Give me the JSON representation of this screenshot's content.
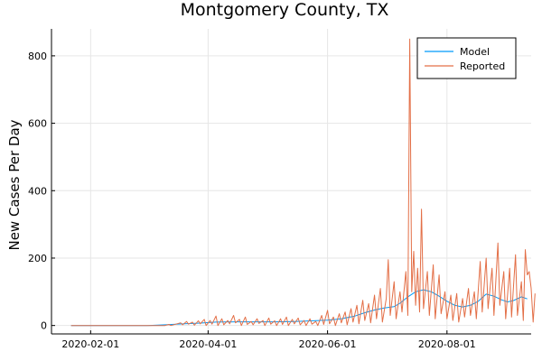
{
  "chart_data": {
    "type": "line",
    "title": "Montgomery County, TX",
    "xlabel": "",
    "ylabel": "New Cases Per Day",
    "x_axis": {
      "type": "date",
      "range": [
        "2020-01-12",
        "2020-09-13"
      ],
      "tick_values": [
        "2020-02-01",
        "2020-04-01",
        "2020-06-01",
        "2020-08-01"
      ],
      "tick_labels": [
        "2020-02-01",
        "2020-04-01",
        "2020-06-01",
        "2020-08-01"
      ]
    },
    "y_axis": {
      "range": [
        -25,
        880
      ],
      "tick_values": [
        0,
        200,
        400,
        600,
        800
      ],
      "tick_labels": [
        "0",
        "200",
        "400",
        "600",
        "800"
      ]
    },
    "grid": true,
    "legend": {
      "placement": "top-right",
      "entries": [
        "Model",
        "Reported"
      ]
    },
    "colors": {
      "Model": "#009AFA",
      "Reported": "#E36F47"
    },
    "series": [
      {
        "name": "Model",
        "color": "#009AFA",
        "points": [
          [
            "2020-01-22",
            0
          ],
          [
            "2020-03-01",
            0
          ],
          [
            "2020-03-10",
            2
          ],
          [
            "2020-03-20",
            5
          ],
          [
            "2020-03-28",
            7
          ],
          [
            "2020-04-05",
            10
          ],
          [
            "2020-04-15",
            11
          ],
          [
            "2020-04-25",
            11
          ],
          [
            "2020-05-05",
            11
          ],
          [
            "2020-05-15",
            12
          ],
          [
            "2020-05-25",
            14
          ],
          [
            "2020-06-01",
            16
          ],
          [
            "2020-06-08",
            20
          ],
          [
            "2020-06-15",
            28
          ],
          [
            "2020-06-20",
            38
          ],
          [
            "2020-06-25",
            46
          ],
          [
            "2020-06-30",
            52
          ],
          [
            "2020-07-05",
            56
          ],
          [
            "2020-07-08",
            66
          ],
          [
            "2020-07-12",
            85
          ],
          [
            "2020-07-16",
            100
          ],
          [
            "2020-07-20",
            106
          ],
          [
            "2020-07-24",
            100
          ],
          [
            "2020-07-28",
            87
          ],
          [
            "2020-08-01",
            72
          ],
          [
            "2020-08-05",
            60
          ],
          [
            "2020-08-09",
            55
          ],
          [
            "2020-08-13",
            60
          ],
          [
            "2020-08-17",
            72
          ],
          [
            "2020-08-21",
            93
          ],
          [
            "2020-08-25",
            87
          ],
          [
            "2020-08-29",
            76
          ],
          [
            "2020-09-01",
            70
          ],
          [
            "2020-09-04",
            74
          ],
          [
            "2020-09-08",
            85
          ],
          [
            "2020-09-11",
            79
          ]
        ]
      },
      {
        "name": "Reported",
        "color": "#E36F47",
        "points": [
          [
            "2020-01-22",
            0
          ],
          [
            "2020-03-10",
            0
          ],
          [
            "2020-03-12",
            3
          ],
          [
            "2020-03-13",
            0
          ],
          [
            "2020-03-18",
            8
          ],
          [
            "2020-03-19",
            2
          ],
          [
            "2020-03-21",
            12
          ],
          [
            "2020-03-22",
            4
          ],
          [
            "2020-03-24",
            10
          ],
          [
            "2020-03-25",
            1
          ],
          [
            "2020-03-27",
            14
          ],
          [
            "2020-03-28",
            5
          ],
          [
            "2020-03-30",
            18
          ],
          [
            "2020-03-31",
            0
          ],
          [
            "2020-04-02",
            15
          ],
          [
            "2020-04-03",
            4
          ],
          [
            "2020-04-05",
            28
          ],
          [
            "2020-04-06",
            0
          ],
          [
            "2020-04-08",
            20
          ],
          [
            "2020-04-09",
            2
          ],
          [
            "2020-04-11",
            15
          ],
          [
            "2020-04-12",
            5
          ],
          [
            "2020-04-14",
            30
          ],
          [
            "2020-04-15",
            8
          ],
          [
            "2020-04-17",
            18
          ],
          [
            "2020-04-18",
            0
          ],
          [
            "2020-04-20",
            25
          ],
          [
            "2020-04-21",
            3
          ],
          [
            "2020-04-23",
            12
          ],
          [
            "2020-04-24",
            2
          ],
          [
            "2020-04-26",
            20
          ],
          [
            "2020-04-27",
            6
          ],
          [
            "2020-04-29",
            15
          ],
          [
            "2020-04-30",
            0
          ],
          [
            "2020-05-02",
            22
          ],
          [
            "2020-05-03",
            4
          ],
          [
            "2020-05-05",
            14
          ],
          [
            "2020-05-06",
            0
          ],
          [
            "2020-05-08",
            20
          ],
          [
            "2020-05-09",
            3
          ],
          [
            "2020-05-11",
            25
          ],
          [
            "2020-05-12",
            0
          ],
          [
            "2020-05-14",
            18
          ],
          [
            "2020-05-15",
            5
          ],
          [
            "2020-05-17",
            22
          ],
          [
            "2020-05-18",
            2
          ],
          [
            "2020-05-20",
            15
          ],
          [
            "2020-05-21",
            0
          ],
          [
            "2020-05-23",
            20
          ],
          [
            "2020-05-24",
            4
          ],
          [
            "2020-05-26",
            12
          ],
          [
            "2020-05-27",
            0
          ],
          [
            "2020-05-29",
            30
          ],
          [
            "2020-05-30",
            3
          ],
          [
            "2020-06-01",
            45
          ],
          [
            "2020-06-02",
            5
          ],
          [
            "2020-06-04",
            25
          ],
          [
            "2020-06-05",
            0
          ],
          [
            "2020-06-07",
            35
          ],
          [
            "2020-06-08",
            8
          ],
          [
            "2020-06-10",
            40
          ],
          [
            "2020-06-11",
            2
          ],
          [
            "2020-06-13",
            50
          ],
          [
            "2020-06-14",
            10
          ],
          [
            "2020-06-16",
            60
          ],
          [
            "2020-06-17",
            5
          ],
          [
            "2020-06-19",
            75
          ],
          [
            "2020-06-20",
            15
          ],
          [
            "2020-06-22",
            65
          ],
          [
            "2020-06-23",
            8
          ],
          [
            "2020-06-25",
            90
          ],
          [
            "2020-06-26",
            20
          ],
          [
            "2020-06-28",
            110
          ],
          [
            "2020-06-29",
            10
          ],
          [
            "2020-07-01",
            80
          ],
          [
            "2020-07-02",
            195
          ],
          [
            "2020-07-03",
            30
          ],
          [
            "2020-07-05",
            130
          ],
          [
            "2020-07-06",
            20
          ],
          [
            "2020-07-08",
            100
          ],
          [
            "2020-07-09",
            40
          ],
          [
            "2020-07-11",
            160
          ],
          [
            "2020-07-12",
            30
          ],
          [
            "2020-07-13",
            850
          ],
          [
            "2020-07-14",
            100
          ],
          [
            "2020-07-15",
            220
          ],
          [
            "2020-07-16",
            60
          ],
          [
            "2020-07-17",
            170
          ],
          [
            "2020-07-18",
            40
          ],
          [
            "2020-07-19",
            345
          ],
          [
            "2020-07-20",
            50
          ],
          [
            "2020-07-22",
            160
          ],
          [
            "2020-07-23",
            30
          ],
          [
            "2020-07-25",
            180
          ],
          [
            "2020-07-26",
            20
          ],
          [
            "2020-07-28",
            150
          ],
          [
            "2020-07-29",
            35
          ],
          [
            "2020-07-31",
            100
          ],
          [
            "2020-08-01",
            20
          ],
          [
            "2020-08-03",
            90
          ],
          [
            "2020-08-04",
            15
          ],
          [
            "2020-08-06",
            95
          ],
          [
            "2020-08-07",
            10
          ],
          [
            "2020-08-09",
            80
          ],
          [
            "2020-08-10",
            25
          ],
          [
            "2020-08-12",
            110
          ],
          [
            "2020-08-13",
            30
          ],
          [
            "2020-08-15",
            100
          ],
          [
            "2020-08-16",
            20
          ],
          [
            "2020-08-18",
            190
          ],
          [
            "2020-08-19",
            40
          ],
          [
            "2020-08-21",
            200
          ],
          [
            "2020-08-22",
            50
          ],
          [
            "2020-08-24",
            170
          ],
          [
            "2020-08-25",
            30
          ],
          [
            "2020-08-27",
            245
          ],
          [
            "2020-08-28",
            60
          ],
          [
            "2020-08-30",
            160
          ],
          [
            "2020-08-31",
            20
          ],
          [
            "2020-09-02",
            170
          ],
          [
            "2020-09-03",
            25
          ],
          [
            "2020-09-05",
            210
          ],
          [
            "2020-09-06",
            30
          ],
          [
            "2020-09-08",
            130
          ],
          [
            "2020-09-09",
            15
          ],
          [
            "2020-09-10",
            225
          ],
          [
            "2020-09-11",
            150
          ],
          [
            "2020-09-12",
            160
          ],
          [
            "2020-09-13",
            110
          ],
          [
            "2020-09-14",
            10
          ],
          [
            "2020-09-15",
            95
          ]
        ]
      }
    ]
  }
}
